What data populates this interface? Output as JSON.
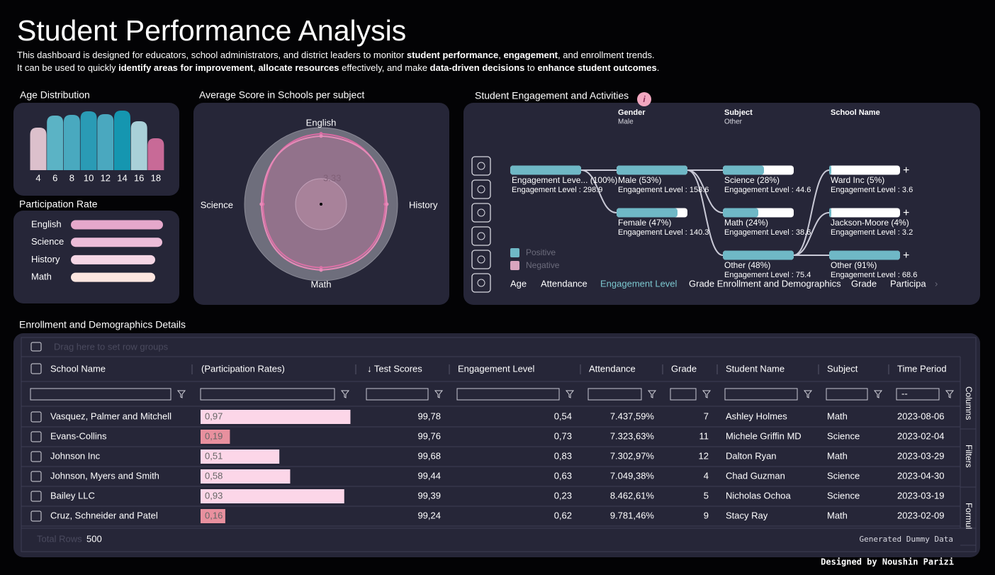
{
  "header": {
    "title": "Student Performance Analysis",
    "description": [
      [
        "This dashboard is designed for educators, school administrators, and district leaders to monitor ",
        "student performance",
        ", ",
        "engagement",
        ", and enrollment trends."
      ],
      [
        "It can be used to quickly ",
        "identify areas for improvement",
        ", ",
        "allocate resources",
        " effectively, and make ",
        "data-driven decisions",
        " to ",
        "enhance student outcomes",
        "."
      ]
    ]
  },
  "chart_data": [
    {
      "type": "bar",
      "title": "Age Distribution",
      "categories": [
        "4",
        "6",
        "8",
        "10",
        "12",
        "14",
        "16",
        "18"
      ],
      "values": [
        60,
        77,
        78,
        83,
        79,
        84,
        69,
        45
      ],
      "colors": [
        "#dcc0cc",
        "#5bb3c5",
        "#49a9bf",
        "#2a9bb5",
        "#4aa8bf",
        "#1596b0",
        "#a9d0d8",
        "#c86a97"
      ]
    },
    {
      "type": "hbar",
      "title": "Participation Rate",
      "categories": [
        "English",
        "Science",
        "History",
        "Math"
      ],
      "values": [
        130,
        129,
        119,
        119
      ],
      "colors": [
        "#e5a8cb",
        "#ecbcd8",
        "#f5d6e5",
        "#fde6e0"
      ]
    },
    {
      "type": "radar",
      "title": "Average Score in Schools per subject",
      "categories": [
        "English",
        "History",
        "Math",
        "Science"
      ],
      "rlim": [
        0,
        10
      ],
      "rticks": [
        3.33
      ],
      "series": [
        {
          "color": "#d86ca3",
          "values": [
            9.2,
            8.4,
            8.3,
            7.6
          ]
        },
        {
          "color": "#e58bb8",
          "values": [
            8.9,
            8.6,
            8.6,
            7.8
          ]
        }
      ]
    },
    {
      "type": "sankey",
      "title": "Student Engagement and Activities",
      "levels": [
        {
          "name": "Gender",
          "value": "Male"
        },
        {
          "name": "Subject",
          "value": "Other"
        },
        {
          "name": "School Name"
        }
      ],
      "nodes": [
        {
          "label": "Engagement Leve... (100%)",
          "detail": "Engagement Level : 298.9",
          "positive": 1
        },
        {
          "label": "Male (53%)",
          "detail": "Engagement Level : 158.6",
          "positive": 1
        },
        {
          "label": "Female (47%)",
          "detail": "Engagement Level : 140.3",
          "positive": 0.86
        },
        {
          "label": "Science (28%)",
          "detail": "Engagement Level : 44.6",
          "positive": 0.58
        },
        {
          "label": "Math (24%)",
          "detail": "Engagement Level : 38.6",
          "positive": 0.5
        },
        {
          "label": "Other (48%)",
          "detail": "Engagement Level : 75.4",
          "positive": 1
        },
        {
          "label": "Ward Inc (5%)",
          "detail": "Engagement Level : 3.6",
          "positive": 0.03
        },
        {
          "label": "Jackson-Moore (4%)",
          "detail": "Engagement Level : 3.2",
          "positive": 0.03
        },
        {
          "label": "Other (91%)",
          "detail": "Engagement Level : 68.6",
          "positive": 1
        }
      ],
      "legend": [
        {
          "name": "Positive",
          "color": "#6fb8c6"
        },
        {
          "name": "Negative",
          "color": "#d9a5bf"
        }
      ],
      "tabs": [
        "Age",
        "Attendance",
        "Engagement Level",
        "Grade Enrollment and Demographics",
        "Grade",
        "Participa"
      ],
      "active_tab": 2
    }
  ],
  "table": {
    "title": "Enrollment and Demographics Details",
    "row_group_hint": "Drag here to set row groups",
    "columns": [
      "School Name",
      "(Participation Rates)",
      "↓ Test Scores",
      "Engagement Level",
      "Attendance",
      "Grade",
      "Student Name",
      "Subject",
      "Time Period"
    ],
    "time_placeholder": "--",
    "participation": {
      "values": [
        0.97,
        0.19,
        0.51,
        0.58,
        0.93,
        0.16
      ],
      "value_labels": [
        "0,97",
        "0,19",
        "0,51",
        "0,58",
        "0,93",
        "0,16"
      ],
      "colors": [
        "#fcd6e8",
        "#e8909e",
        "#fcd6e8",
        "#fcd6e8",
        "#fcd6e8",
        "#e8909e"
      ]
    },
    "rows": [
      [
        "Vasquez, Palmer and Mitchell",
        "99,78",
        "0,54",
        "7.437,59%",
        "7",
        "Ashley Holmes",
        "Math",
        "2023-08-06"
      ],
      [
        "Evans-Collins",
        "99,76",
        "0,73",
        "7.323,63%",
        "11",
        "Michele Griffin MD",
        "Science",
        "2023-02-04"
      ],
      [
        "Johnson Inc",
        "99,68",
        "0,83",
        "7.302,97%",
        "12",
        "Dalton Ryan",
        "Math",
        "2023-03-29"
      ],
      [
        "Johnson, Myers and Smith",
        "99,44",
        "0,63",
        "7.049,38%",
        "4",
        "Chad Guzman",
        "Science",
        "2023-04-30"
      ],
      [
        "Bailey LLC",
        "99,39",
        "0,23",
        "8.462,61%",
        "5",
        "Nicholas Ochoa",
        "Science",
        "2023-03-19"
      ],
      [
        "Cruz, Schneider and Patel",
        "99,24",
        "0,62",
        "9.781,46%",
        "9",
        "Stacy Ray",
        "Math",
        "2023-02-09"
      ]
    ],
    "total_rows_label": "Total Rows",
    "total_rows": "500",
    "status": "Generated Dummy Data",
    "side_tabs": [
      "Columns",
      "Filters",
      "Formul"
    ]
  },
  "credit": "Designed by Noushin Parizi"
}
